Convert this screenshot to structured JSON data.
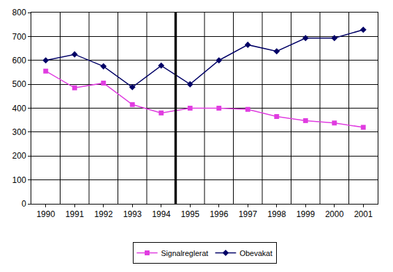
{
  "chart_data": {
    "type": "line",
    "categories": [
      "1990",
      "1991",
      "1992",
      "1993",
      "1994",
      "1995",
      "1996",
      "1997",
      "1998",
      "1999",
      "2000",
      "2001"
    ],
    "series": [
      {
        "name": "Signalreglerat",
        "color": "#e03ce0",
        "marker": "square",
        "values": [
          555,
          485,
          505,
          415,
          380,
          400,
          400,
          395,
          365,
          348,
          338,
          320
        ]
      },
      {
        "name": "Obevakat",
        "color": "#000066",
        "marker": "diamond",
        "values": [
          600,
          625,
          575,
          488,
          578,
          500,
          600,
          665,
          638,
          693,
          693,
          728
        ]
      }
    ],
    "ylim": [
      0,
      800
    ],
    "yticks": [
      0,
      100,
      200,
      300,
      400,
      500,
      600,
      700,
      800
    ],
    "grid": true,
    "legend": "bottom"
  }
}
